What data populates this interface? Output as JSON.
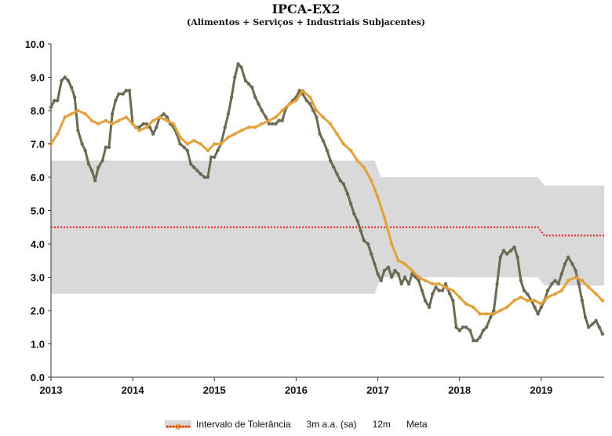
{
  "chart_data": {
    "type": "line",
    "title": "IPCA-EX2",
    "subtitle": "(Alimentos + Serviços + Industriais Subjacentes)",
    "xlabel": "",
    "ylabel": "",
    "xlim": [
      2013.0,
      2019.77
    ],
    "ylim": [
      0.0,
      10.0
    ],
    "x_ticks": [
      "2013",
      "2014",
      "2015",
      "2016",
      "2017",
      "2018",
      "2019"
    ],
    "y_ticks": [
      "0.0",
      "1.0",
      "2.0",
      "3.0",
      "4.0",
      "5.0",
      "6.0",
      "7.0",
      "8.0",
      "9.0",
      "10.0"
    ],
    "colors": {
      "band": "#d9d9d9",
      "s3m": "#6b6a52",
      "s12m": "#e3a13a",
      "meta": "#e02020"
    },
    "band": {
      "name": "Intervalo de Tolerância",
      "points": [
        {
          "x": 2013.0,
          "low": 2.5,
          "high": 6.5
        },
        {
          "x": 2016.96,
          "low": 2.5,
          "high": 6.5
        },
        {
          "x": 2017.04,
          "low": 3.0,
          "high": 6.0
        },
        {
          "x": 2018.96,
          "low": 3.0,
          "high": 6.0
        },
        {
          "x": 2019.04,
          "low": 2.75,
          "high": 5.75
        },
        {
          "x": 2019.77,
          "low": 2.75,
          "high": 5.75
        }
      ]
    },
    "series": [
      {
        "name": "3m a.a. (sa)",
        "x": [
          2013.0,
          2013.04,
          2013.08,
          2013.13,
          2013.17,
          2013.21,
          2013.25,
          2013.29,
          2013.33,
          2013.38,
          2013.42,
          2013.46,
          2013.5,
          2013.54,
          2013.58,
          2013.63,
          2013.67,
          2013.71,
          2013.75,
          2013.79,
          2013.83,
          2013.88,
          2013.92,
          2013.96,
          2014.0,
          2014.04,
          2014.08,
          2014.13,
          2014.17,
          2014.21,
          2014.25,
          2014.29,
          2014.33,
          2014.38,
          2014.42,
          2014.46,
          2014.5,
          2014.54,
          2014.58,
          2014.63,
          2014.67,
          2014.71,
          2014.75,
          2014.79,
          2014.83,
          2014.88,
          2014.92,
          2014.96,
          2015.0,
          2015.04,
          2015.08,
          2015.13,
          2015.17,
          2015.21,
          2015.25,
          2015.29,
          2015.33,
          2015.38,
          2015.42,
          2015.46,
          2015.5,
          2015.54,
          2015.58,
          2015.63,
          2015.67,
          2015.71,
          2015.75,
          2015.79,
          2015.83,
          2015.88,
          2015.92,
          2015.96,
          2016.0,
          2016.04,
          2016.08,
          2016.13,
          2016.17,
          2016.21,
          2016.25,
          2016.29,
          2016.33,
          2016.38,
          2016.42,
          2016.46,
          2016.5,
          2016.54,
          2016.58,
          2016.63,
          2016.67,
          2016.71,
          2016.75,
          2016.79,
          2016.83,
          2016.88,
          2016.92,
          2016.96,
          2017.0,
          2017.04,
          2017.08,
          2017.13,
          2017.17,
          2017.21,
          2017.25,
          2017.29,
          2017.33,
          2017.38,
          2017.42,
          2017.46,
          2017.5,
          2017.54,
          2017.58,
          2017.63,
          2017.67,
          2017.71,
          2017.75,
          2017.79,
          2017.83,
          2017.88,
          2017.92,
          2017.96,
          2018.0,
          2018.04,
          2018.08,
          2018.13,
          2018.17,
          2018.21,
          2018.25,
          2018.29,
          2018.33,
          2018.38,
          2018.42,
          2018.46,
          2018.5,
          2018.54,
          2018.58,
          2018.63,
          2018.67,
          2018.71,
          2018.75,
          2018.79,
          2018.83,
          2018.88,
          2018.92,
          2018.96,
          2019.0,
          2019.04,
          2019.08,
          2019.13,
          2019.17,
          2019.21,
          2019.25,
          2019.29,
          2019.33,
          2019.38,
          2019.42,
          2019.46,
          2019.5,
          2019.54,
          2019.58,
          2019.63,
          2019.67,
          2019.71,
          2019.75
        ],
        "values": [
          8.1,
          8.3,
          8.3,
          8.9,
          9.0,
          8.9,
          8.7,
          8.4,
          7.4,
          7.0,
          6.8,
          6.4,
          6.2,
          5.9,
          6.3,
          6.5,
          6.9,
          6.9,
          7.9,
          8.3,
          8.5,
          8.5,
          8.6,
          8.6,
          7.6,
          7.5,
          7.5,
          7.6,
          7.6,
          7.5,
          7.3,
          7.5,
          7.8,
          7.9,
          7.8,
          7.6,
          7.5,
          7.3,
          7.0,
          6.9,
          6.8,
          6.4,
          6.3,
          6.2,
          6.1,
          6.0,
          6.0,
          6.6,
          6.6,
          6.8,
          7.0,
          7.5,
          7.9,
          8.4,
          9.0,
          9.4,
          9.3,
          8.9,
          8.8,
          8.7,
          8.4,
          8.2,
          8.0,
          7.8,
          7.6,
          7.6,
          7.6,
          7.7,
          7.7,
          8.1,
          8.2,
          8.3,
          8.4,
          8.6,
          8.5,
          8.3,
          8.2,
          8.0,
          7.8,
          7.3,
          7.1,
          6.8,
          6.5,
          6.3,
          6.1,
          5.9,
          5.8,
          5.5,
          5.2,
          4.9,
          4.7,
          4.4,
          4.1,
          4.0,
          3.7,
          3.4,
          3.1,
          2.9,
          3.2,
          3.3,
          3.0,
          3.2,
          3.1,
          2.8,
          3.0,
          2.8,
          3.1,
          3.0,
          2.9,
          2.6,
          2.3,
          2.1,
          2.5,
          2.7,
          2.6,
          2.6,
          2.8,
          2.5,
          2.3,
          1.5,
          1.4,
          1.5,
          1.5,
          1.4,
          1.1,
          1.1,
          1.2,
          1.4,
          1.5,
          1.8,
          2.0,
          2.8,
          3.6,
          3.8,
          3.7,
          3.8,
          3.9,
          3.6,
          2.9,
          2.6,
          2.5,
          2.3,
          2.1,
          1.9,
          2.1,
          2.3,
          2.6,
          2.8,
          2.9,
          2.8,
          3.1,
          3.4,
          3.6,
          3.4,
          3.2,
          2.8,
          2.3,
          1.8,
          1.5,
          1.6,
          1.7,
          1.5,
          1.3
        ]
      },
      {
        "name": "12m",
        "x": [
          2013.0,
          2013.08,
          2013.17,
          2013.25,
          2013.33,
          2013.42,
          2013.5,
          2013.58,
          2013.67,
          2013.75,
          2013.83,
          2013.92,
          2014.0,
          2014.08,
          2014.17,
          2014.25,
          2014.33,
          2014.42,
          2014.5,
          2014.58,
          2014.67,
          2014.75,
          2014.83,
          2014.92,
          2015.0,
          2015.08,
          2015.17,
          2015.25,
          2015.33,
          2015.42,
          2015.5,
          2015.58,
          2015.67,
          2015.75,
          2015.83,
          2015.92,
          2016.0,
          2016.08,
          2016.17,
          2016.25,
          2016.33,
          2016.42,
          2016.5,
          2016.58,
          2016.67,
          2016.75,
          2016.83,
          2016.92,
          2017.0,
          2017.08,
          2017.17,
          2017.25,
          2017.33,
          2017.42,
          2017.5,
          2017.58,
          2017.67,
          2017.75,
          2017.83,
          2017.92,
          2018.0,
          2018.08,
          2018.17,
          2018.25,
          2018.33,
          2018.42,
          2018.5,
          2018.58,
          2018.67,
          2018.75,
          2018.83,
          2018.92,
          2019.0,
          2019.08,
          2019.17,
          2019.25,
          2019.33,
          2019.42,
          2019.5,
          2019.58,
          2019.67,
          2019.75
        ],
        "values": [
          7.0,
          7.3,
          7.8,
          7.9,
          8.0,
          7.9,
          7.7,
          7.6,
          7.7,
          7.6,
          7.7,
          7.8,
          7.6,
          7.4,
          7.5,
          7.7,
          7.8,
          7.7,
          7.6,
          7.2,
          7.0,
          7.1,
          7.0,
          6.8,
          7.0,
          7.0,
          7.2,
          7.3,
          7.4,
          7.5,
          7.5,
          7.6,
          7.7,
          7.8,
          8.0,
          8.2,
          8.3,
          8.6,
          8.4,
          8.0,
          7.8,
          7.6,
          7.3,
          7.0,
          6.8,
          6.5,
          6.3,
          5.9,
          5.4,
          4.8,
          4.0,
          3.5,
          3.4,
          3.2,
          3.0,
          2.9,
          2.8,
          2.8,
          2.7,
          2.6,
          2.4,
          2.2,
          2.1,
          1.9,
          1.9,
          1.9,
          2.0,
          2.1,
          2.3,
          2.4,
          2.3,
          2.3,
          2.2,
          2.4,
          2.5,
          2.6,
          2.9,
          3.0,
          2.9,
          2.7,
          2.5,
          2.3
        ]
      },
      {
        "name": "Meta",
        "x": [
          2013.0,
          2018.96,
          2019.04,
          2019.77
        ],
        "values": [
          4.5,
          4.5,
          4.25,
          4.25
        ]
      }
    ],
    "legend": [
      "Intervalo de Tolerância",
      "3m a.a. (sa)",
      "12m",
      "Meta"
    ],
    "legend_position": "bottom",
    "grid": false
  }
}
